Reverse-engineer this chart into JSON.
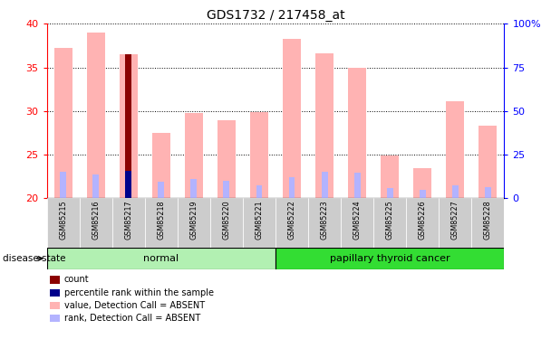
{
  "title": "GDS1732 / 217458_at",
  "samples": [
    "GSM85215",
    "GSM85216",
    "GSM85217",
    "GSM85218",
    "GSM85219",
    "GSM85220",
    "GSM85221",
    "GSM85222",
    "GSM85223",
    "GSM85224",
    "GSM85225",
    "GSM85226",
    "GSM85227",
    "GSM85228"
  ],
  "value_absent": [
    37.2,
    39.0,
    36.5,
    27.5,
    29.8,
    28.9,
    29.9,
    38.3,
    36.6,
    34.9,
    24.9,
    23.5,
    31.1,
    28.3
  ],
  "rank_absent": [
    23.0,
    22.7,
    23.1,
    21.9,
    22.2,
    22.0,
    21.5,
    22.4,
    23.0,
    22.9,
    21.2,
    21.0,
    21.5,
    21.3
  ],
  "count_bar": [
    null,
    null,
    36.5,
    null,
    null,
    null,
    null,
    null,
    null,
    null,
    null,
    null,
    null,
    null
  ],
  "percentile_bar": [
    null,
    null,
    23.1,
    null,
    null,
    null,
    null,
    null,
    null,
    null,
    null,
    null,
    null,
    null
  ],
  "ylim_left": [
    20,
    40
  ],
  "ylim_right": [
    0,
    100
  ],
  "yticks_left": [
    20,
    25,
    30,
    35,
    40
  ],
  "yticks_right": [
    0,
    25,
    50,
    75,
    100
  ],
  "ytick_right_labels": [
    "0",
    "25",
    "50",
    "75",
    "100%"
  ],
  "normal_indices": [
    0,
    1,
    2,
    3,
    4,
    5,
    6
  ],
  "cancer_indices": [
    7,
    8,
    9,
    10,
    11,
    12,
    13
  ],
  "normal_label": "normal",
  "cancer_label": "papillary thyroid cancer",
  "disease_state_label": "disease state",
  "bar_width": 0.55,
  "color_value_absent": "#ffb3b3",
  "color_rank_absent": "#b3b3ff",
  "color_count": "#8b0000",
  "color_percentile": "#00008b",
  "color_normal_bg": "#b2f0b2",
  "color_cancer_bg": "#33dd33",
  "color_xticklabel_bg": "#cccccc",
  "left_tick_color": "red",
  "right_tick_color": "blue",
  "baseline": 20,
  "figsize": [
    6.08,
    3.75
  ],
  "dpi": 100
}
